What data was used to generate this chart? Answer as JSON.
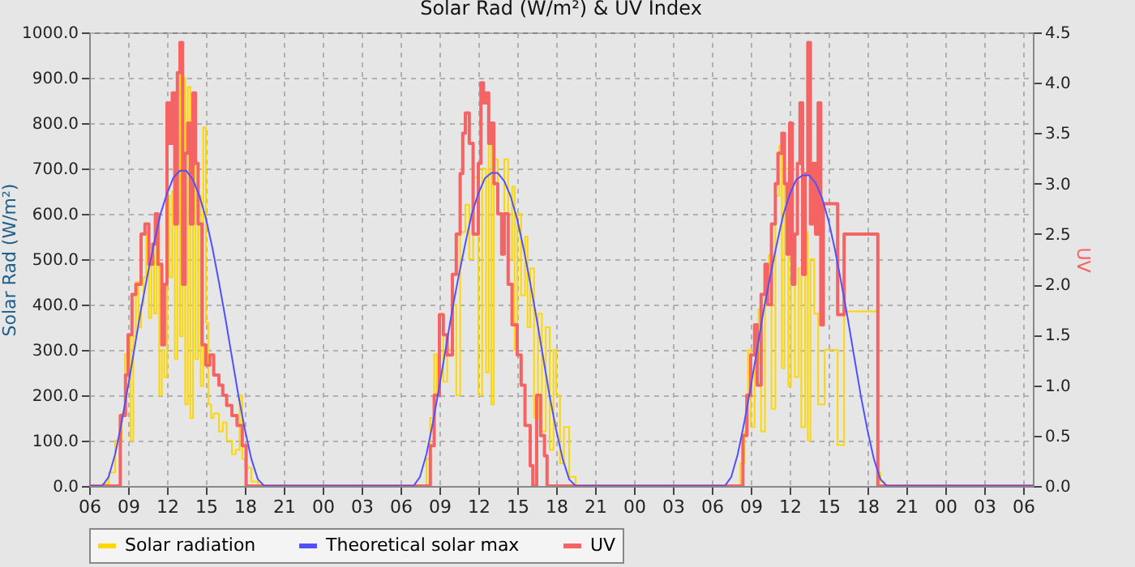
{
  "chart_data": {
    "type": "line",
    "title": "Solar Rad (W/m²) &  UV Index",
    "ylabel": "Solar Rad (W/m²)",
    "y2label": "UV",
    "xlim": [
      6,
      78.75
    ],
    "xticks": [
      {
        "value": 6,
        "label": "06"
      },
      {
        "value": 9,
        "label": "09"
      },
      {
        "value": 12,
        "label": "12"
      },
      {
        "value": 15,
        "label": "15"
      },
      {
        "value": 18,
        "label": "18"
      },
      {
        "value": 21,
        "label": "21"
      },
      {
        "value": 24,
        "label": "00"
      },
      {
        "value": 27,
        "label": "03"
      },
      {
        "value": 30,
        "label": "06"
      },
      {
        "value": 33,
        "label": "09"
      },
      {
        "value": 36,
        "label": "12"
      },
      {
        "value": 39,
        "label": "15"
      },
      {
        "value": 42,
        "label": "18"
      },
      {
        "value": 45,
        "label": "21"
      },
      {
        "value": 48,
        "label": "00"
      },
      {
        "value": 51,
        "label": "03"
      },
      {
        "value": 54,
        "label": "06"
      },
      {
        "value": 57,
        "label": "09"
      },
      {
        "value": 60,
        "label": "12"
      },
      {
        "value": 63,
        "label": "15"
      },
      {
        "value": 66,
        "label": "18"
      },
      {
        "value": 69,
        "label": "21"
      },
      {
        "value": 72,
        "label": "00"
      },
      {
        "value": 75,
        "label": "03"
      },
      {
        "value": 78,
        "label": "06"
      }
    ],
    "ylim": [
      0,
      1000
    ],
    "yticks": [
      {
        "value": 0,
        "label": "0.0"
      },
      {
        "value": 100,
        "label": "100.0"
      },
      {
        "value": 200,
        "label": "200.0"
      },
      {
        "value": 300,
        "label": "300.0"
      },
      {
        "value": 400,
        "label": "400.0"
      },
      {
        "value": 500,
        "label": "500.0"
      },
      {
        "value": 600,
        "label": "600.0"
      },
      {
        "value": 700,
        "label": "700.0"
      },
      {
        "value": 800,
        "label": "800.0"
      },
      {
        "value": 900,
        "label": "900.0"
      },
      {
        "value": 1000,
        "label": "1000.0"
      }
    ],
    "y2lim": [
      0,
      4.5
    ],
    "y2ticks": [
      {
        "value": 0,
        "label": "0.0"
      },
      {
        "value": 0.5,
        "label": "0.5"
      },
      {
        "value": 1,
        "label": "1.0"
      },
      {
        "value": 1.5,
        "label": "1.5"
      },
      {
        "value": 2,
        "label": "2.0"
      },
      {
        "value": 2.5,
        "label": "2.5"
      },
      {
        "value": 3,
        "label": "3.0"
      },
      {
        "value": 3.5,
        "label": "3.5"
      },
      {
        "value": 4,
        "label": "4.0"
      },
      {
        "value": 4.5,
        "label": "4.5"
      }
    ],
    "grid": true,
    "legend": "bottom",
    "marker": "none",
    "line_style": "solid",
    "series": [
      {
        "name": "Solar radiation",
        "type": "step",
        "color": "#ffd700",
        "x": [
          6,
          6.8,
          7.0,
          7.5,
          8.0,
          8.5,
          8.75,
          9.0,
          9.2,
          9.4,
          9.6,
          9.8,
          10.0,
          10.2,
          10.4,
          10.6,
          10.8,
          11.0,
          11.2,
          11.4,
          11.6,
          11.8,
          12.0,
          12.2,
          12.4,
          12.6,
          12.8,
          13.0,
          13.2,
          13.4,
          13.6,
          13.8,
          14.0,
          14.2,
          14.4,
          14.6,
          14.8,
          15.0,
          15.2,
          15.4,
          15.6,
          16.0,
          16.3,
          16.6,
          17.0,
          17.3,
          17.6,
          17.8,
          18.0,
          18.5,
          19.0,
          31.5,
          32.0,
          32.3,
          32.6,
          32.8,
          33.0,
          33.3,
          33.6,
          34.0,
          34.3,
          34.6,
          35.0,
          35.3,
          35.6,
          36.0,
          36.3,
          36.6,
          36.8,
          37.0,
          37.2,
          37.5,
          37.8,
          38.0,
          38.3,
          38.6,
          38.8,
          39.0,
          39.3,
          39.6,
          39.8,
          40.0,
          40.3,
          40.6,
          40.9,
          41.2,
          41.5,
          41.8,
          42.0,
          42.3,
          42.6,
          43.0,
          43.5,
          55.8,
          56.2,
          56.5,
          56.8,
          57.0,
          57.3,
          57.6,
          57.8,
          58.1,
          58.4,
          58.6,
          58.9,
          59.2,
          59.4,
          59.6,
          59.9,
          60.1,
          60.4,
          60.7,
          60.9,
          61.2,
          61.4,
          61.6,
          61.9,
          62.2,
          62.7,
          63.7,
          64.2,
          66.8,
          67.0,
          67.3,
          78.75
        ],
        "values": [
          0,
          0,
          5,
          30,
          100,
          160,
          290,
          330,
          100,
          330,
          450,
          350,
          400,
          460,
          560,
          370,
          510,
          380,
          590,
          200,
          300,
          240,
          640,
          460,
          650,
          280,
          910,
          330,
          900,
          180,
          880,
          150,
          760,
          280,
          640,
          220,
          790,
          360,
          180,
          150,
          160,
          120,
          140,
          100,
          70,
          80,
          200,
          60,
          40,
          10,
          0,
          0,
          60,
          150,
          290,
          200,
          380,
          230,
          300,
          400,
          200,
          560,
          620,
          500,
          680,
          200,
          700,
          250,
          760,
          180,
          720,
          600,
          550,
          720,
          500,
          660,
          300,
          600,
          420,
          550,
          350,
          480,
          150,
          380,
          120,
          350,
          80,
          300,
          200,
          50,
          130,
          20,
          0,
          0,
          50,
          120,
          300,
          130,
          270,
          390,
          120,
          430,
          510,
          170,
          640,
          750,
          260,
          700,
          220,
          520,
          240,
          480,
          130,
          560,
          100,
          500,
          380,
          180,
          300,
          90,
          385,
          30,
          10,
          0,
          0
        ]
      },
      {
        "name": "Theoretical solar max",
        "type": "line",
        "color": "#5050ff",
        "x": [
          6,
          7.0,
          7.5,
          8.0,
          8.5,
          9.0,
          9.5,
          10.0,
          10.5,
          11.0,
          11.5,
          12.0,
          12.5,
          13.0,
          13.5,
          14.0,
          14.5,
          15.0,
          15.5,
          16.0,
          16.5,
          17.0,
          17.5,
          18.0,
          18.5,
          19.0,
          19.5,
          31.0,
          31.5,
          32.0,
          32.5,
          33.0,
          33.5,
          34.0,
          34.5,
          35.0,
          35.5,
          36.0,
          36.5,
          37.0,
          37.5,
          38.0,
          38.5,
          39.0,
          39.5,
          40.0,
          40.5,
          41.0,
          41.5,
          42.0,
          42.5,
          43.0,
          43.5,
          55.0,
          55.5,
          56.0,
          56.5,
          57.0,
          57.5,
          58.0,
          58.5,
          59.0,
          59.5,
          60.0,
          60.5,
          61.0,
          61.5,
          62.0,
          62.5,
          63.0,
          63.5,
          64.0,
          64.5,
          65.0,
          65.5,
          66.0,
          66.5,
          67.0,
          67.5,
          78.75
        ],
        "values": [
          0,
          0,
          20,
          70,
          140,
          220,
          305,
          390,
          465,
          535,
          600,
          645,
          680,
          695,
          695,
          675,
          640,
          590,
          525,
          450,
          370,
          285,
          200,
          125,
          60,
          15,
          0,
          0,
          20,
          70,
          140,
          220,
          305,
          390,
          465,
          535,
          600,
          645,
          678,
          690,
          690,
          672,
          638,
          588,
          522,
          448,
          368,
          283,
          198,
          124,
          60,
          15,
          0,
          0,
          20,
          70,
          140,
          218,
          303,
          388,
          462,
          532,
          597,
          642,
          675,
          685,
          685,
          668,
          635,
          585,
          520,
          445,
          366,
          281,
          197,
          123,
          59,
          15,
          0,
          0
        ]
      },
      {
        "name": "UV",
        "type": "step",
        "axis": "y2",
        "color": "#f46464",
        "x": [
          6,
          8.4,
          8.8,
          9.0,
          9.3,
          9.6,
          10.0,
          10.3,
          10.6,
          10.9,
          11.1,
          11.3,
          11.6,
          11.8,
          12.0,
          12.2,
          12.4,
          12.6,
          12.8,
          13.0,
          13.2,
          13.4,
          13.6,
          13.8,
          14.0,
          14.2,
          14.4,
          14.7,
          15.0,
          15.3,
          15.6,
          16.0,
          16.3,
          16.6,
          17.0,
          17.4,
          17.8,
          18.1,
          32.3,
          32.6,
          33.0,
          33.3,
          33.6,
          34.0,
          34.3,
          34.6,
          34.8,
          35.0,
          35.3,
          35.6,
          36.0,
          36.2,
          36.4,
          36.6,
          36.8,
          37.0,
          37.2,
          37.5,
          37.8,
          38.0,
          38.3,
          38.6,
          39.0,
          39.3,
          39.6,
          40.0,
          40.2,
          40.5,
          40.8,
          41.1,
          41.3,
          56.4,
          56.7,
          57.0,
          57.3,
          57.5,
          57.8,
          58.1,
          58.3,
          58.6,
          58.9,
          59.1,
          59.4,
          59.6,
          59.8,
          60.0,
          60.2,
          60.4,
          60.6,
          60.8,
          61.0,
          61.2,
          61.4,
          61.6,
          61.8,
          62.0,
          62.2,
          62.4,
          62.6,
          63.7,
          64.2,
          66.8,
          78.75
        ],
        "values": [
          0,
          0.7,
          1.1,
          1.5,
          1.9,
          2.0,
          2.5,
          2.6,
          2.2,
          2.4,
          2.7,
          2.2,
          1.4,
          2.0,
          3.8,
          3.4,
          3.9,
          2.6,
          4.1,
          4.4,
          2.0,
          3.3,
          3.6,
          2.6,
          3.9,
          3.2,
          2.6,
          1.4,
          1.2,
          1.3,
          1.1,
          1.0,
          0.9,
          0.8,
          0.7,
          0.6,
          0.4,
          0,
          0.4,
          0.9,
          1.7,
          1.5,
          1.3,
          2.1,
          2.5,
          3.1,
          3.5,
          3.7,
          3.4,
          2.5,
          3.2,
          4.0,
          3.8,
          3.9,
          3.4,
          3.6,
          3.0,
          2.7,
          2.3,
          2.7,
          2.0,
          1.6,
          1.3,
          1.0,
          0.6,
          0.2,
          0,
          0.9,
          0.5,
          0.3,
          0,
          0.5,
          0.9,
          1.3,
          1.6,
          1.0,
          1.9,
          2.2,
          1.8,
          2.6,
          3.0,
          3.3,
          3.5,
          3.0,
          2.3,
          3.6,
          2.0,
          2.5,
          3.2,
          3.8,
          2.1,
          3.1,
          4.4,
          2.6,
          3.2,
          2.5,
          3.8,
          1.6,
          2.8,
          1.7,
          2.5,
          0,
          0
        ]
      }
    ]
  }
}
